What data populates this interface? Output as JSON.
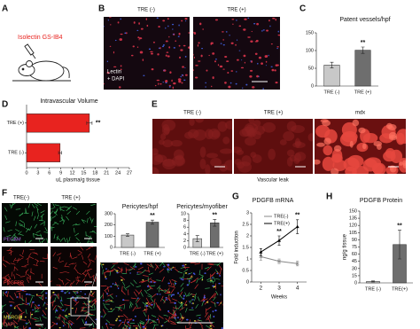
{
  "panel_letters": [
    "A",
    "B",
    "C",
    "D",
    "E",
    "F",
    "G",
    "H"
  ],
  "panel_a": {
    "label": "Isolectin GS-IB4"
  },
  "panel_b": {
    "columns": [
      "TRE (-)",
      "TRE (+)"
    ],
    "stain": [
      "Lectin",
      "+ DAPI"
    ]
  },
  "panel_e": {
    "columns": [
      "TRE (-)",
      "TRE (+)",
      "mdx"
    ],
    "caption": "Vascular leak"
  },
  "panel_f": {
    "columns": [
      "TRE(-)",
      "TRE (+)"
    ],
    "stains": [
      "PECAM",
      "PDGFBR",
      "MERGE",
      "DAPI"
    ]
  },
  "chart_data": [
    {
      "type": "bar",
      "title": "Patent vessels/hpf",
      "categories": [
        "TRE (-)",
        "TRE (+)"
      ],
      "values": [
        59,
        101
      ],
      "errors": [
        8,
        9
      ],
      "colors": [
        "#c8c8c8",
        "#6e6e6e"
      ],
      "significance": [
        null,
        "**"
      ],
      "ylim": [
        0,
        150
      ],
      "yticks": [
        0,
        50,
        100,
        150
      ]
    },
    {
      "type": "bar",
      "orientation": "horizontal",
      "title": "Intravascular Volume",
      "categories": [
        "TRE (+)",
        "TRE (-)"
      ],
      "values": [
        16.5,
        8.8
      ],
      "errors": [
        0.7,
        0.4
      ],
      "colors": [
        "#e8231f",
        "#e8231f"
      ],
      "significance": [
        "**",
        null
      ],
      "xlabel": "uL plasma/g tissue",
      "xlim": [
        0,
        27
      ],
      "xticks": [
        0,
        3,
        6,
        9,
        12,
        15,
        18,
        21,
        24,
        27
      ]
    },
    {
      "type": "bar",
      "title": "Pericytes/hpf",
      "categories": [
        "TRE (-)",
        "TRE (+)"
      ],
      "values": [
        110,
        225
      ],
      "errors": [
        12,
        18
      ],
      "colors": [
        "#c8c8c8",
        "#6e6e6e"
      ],
      "significance": [
        null,
        "**"
      ],
      "ylim": [
        0,
        300
      ],
      "yticks": [
        0,
        100,
        200,
        300
      ]
    },
    {
      "type": "bar",
      "title": "Pericytes/myofiber",
      "categories": [
        "TRE (-)",
        "TRE (+)"
      ],
      "values": [
        2.6,
        7.3
      ],
      "errors": [
        0.9,
        1.0
      ],
      "colors": [
        "#c8c8c8",
        "#6e6e6e"
      ],
      "significance": [
        null,
        "**"
      ],
      "ylim": [
        0,
        10
      ],
      "yticks": [
        0,
        2,
        4,
        6,
        8,
        10
      ]
    },
    {
      "type": "line",
      "title": "PDGFB mRNA",
      "xlabel": "Weeks",
      "ylabel": "Fold induction",
      "x": [
        2,
        3,
        4
      ],
      "xlim": [
        1.5,
        4.5
      ],
      "xticks": [
        2,
        3,
        4
      ],
      "ylim": [
        0,
        3
      ],
      "yticks": [
        0,
        0.5,
        1,
        1.5,
        2,
        2.5,
        3
      ],
      "legend": "upper left",
      "significance": [
        null,
        "**",
        "**"
      ],
      "series": [
        {
          "name": "TRE(-)",
          "color": "#888888",
          "values": [
            1.1,
            0.9,
            0.8
          ],
          "errors": [
            0.15,
            0.1,
            0.1
          ]
        },
        {
          "name": "TRE(+)",
          "color": "#000000",
          "values": [
            1.3,
            1.8,
            2.4
          ],
          "errors": [
            0.15,
            0.2,
            0.3
          ]
        }
      ]
    },
    {
      "type": "bar",
      "title": "PDGFB Protein",
      "ylabel": "ng/g tissue",
      "categories": [
        "TRE (-)",
        "TRE(+)"
      ],
      "values": [
        3,
        80
      ],
      "errors": [
        1,
        30
      ],
      "colors": [
        "#c8c8c8",
        "#6e6e6e"
      ],
      "significance": [
        null,
        "**"
      ],
      "ylim": [
        0,
        150
      ],
      "yticks": [
        0,
        15,
        30,
        45,
        60,
        75,
        90,
        105,
        120,
        135,
        150
      ]
    }
  ]
}
